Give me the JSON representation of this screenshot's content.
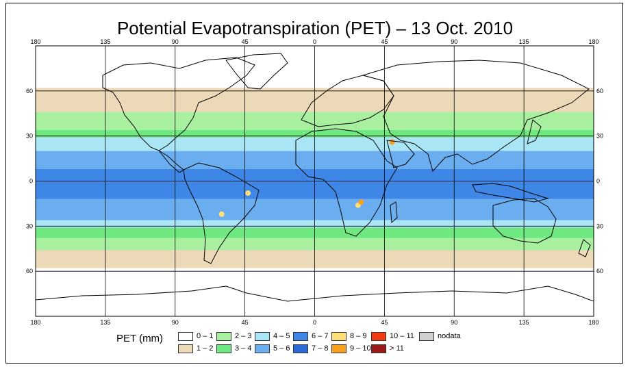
{
  "title": "Potential Evapotranspiration (PET) – 13 Oct. 2010",
  "axes": {
    "x_ticks": [
      "180",
      "135",
      "90",
      "45",
      "0",
      "45",
      "90",
      "135",
      "180"
    ],
    "y_ticks_left": [
      "60",
      "30",
      "0",
      "30",
      "60"
    ],
    "y_ticks_right": [
      "60",
      "30",
      "0",
      "30",
      "60"
    ]
  },
  "legend": {
    "title": "PET (mm)",
    "items": [
      {
        "label": "0 – 1",
        "color": "#ffffff"
      },
      {
        "label": "1 – 2",
        "color": "#ecd9b8"
      },
      {
        "label": "2 – 3",
        "color": "#a8efa0"
      },
      {
        "label": "3 – 4",
        "color": "#6fe882"
      },
      {
        "label": "4 – 5",
        "color": "#a9e5f5"
      },
      {
        "label": "5 – 6",
        "color": "#6aaef0"
      },
      {
        "label": "6 – 7",
        "color": "#3e87e6"
      },
      {
        "label": "7 – 8",
        "color": "#2b6bd8"
      },
      {
        "label": "8 – 9",
        "color": "#fde07a"
      },
      {
        "label": "9 – 10",
        "color": "#f7a11c"
      },
      {
        "label": "10 – 11",
        "color": "#f03a12"
      },
      {
        "label": "> 11",
        "color": "#9b1a18"
      },
      {
        "label": "nodata",
        "color": "#d0d0d0"
      }
    ]
  },
  "chart_data": {
    "type": "heatmap",
    "title": "Potential Evapotranspiration (PET) – 13 Oct. 2010",
    "xlim": [
      -180,
      180
    ],
    "ylim": [
      -90,
      90
    ],
    "grid": true,
    "bands": [
      {
        "lat_from": 90,
        "lat_to": 62,
        "class": "0 – 1"
      },
      {
        "lat_from": 62,
        "lat_to": 46,
        "class": "1 – 2"
      },
      {
        "lat_from": 46,
        "lat_to": 34,
        "class": "2 – 3"
      },
      {
        "lat_from": 34,
        "lat_to": 29,
        "class": "3 – 4"
      },
      {
        "lat_from": 29,
        "lat_to": 20,
        "class": "4 – 5"
      },
      {
        "lat_from": 20,
        "lat_to": 8,
        "class": "5 – 6"
      },
      {
        "lat_from": 8,
        "lat_to": -12,
        "class": "6 – 7"
      },
      {
        "lat_from": -12,
        "lat_to": -26,
        "class": "5 – 6"
      },
      {
        "lat_from": -26,
        "lat_to": -31,
        "class": "4 – 5"
      },
      {
        "lat_from": -31,
        "lat_to": -38,
        "class": "3 – 4"
      },
      {
        "lat_from": -38,
        "lat_to": -46,
        "class": "2 – 3"
      },
      {
        "lat_from": -46,
        "lat_to": -58,
        "class": "1 – 2"
      },
      {
        "lat_from": -58,
        "lat_to": -90,
        "class": "0 – 1"
      }
    ],
    "hotspots": [
      {
        "lon": 28,
        "lat": -16,
        "class": "8 – 9"
      },
      {
        "lon": 30,
        "lat": -14,
        "class": "9 – 10"
      },
      {
        "lon": -43,
        "lat": -8,
        "class": "8 – 9"
      },
      {
        "lon": -60,
        "lat": -22,
        "class": "8 – 9"
      },
      {
        "lon": 50,
        "lat": 26,
        "class": "9 – 10"
      }
    ]
  }
}
